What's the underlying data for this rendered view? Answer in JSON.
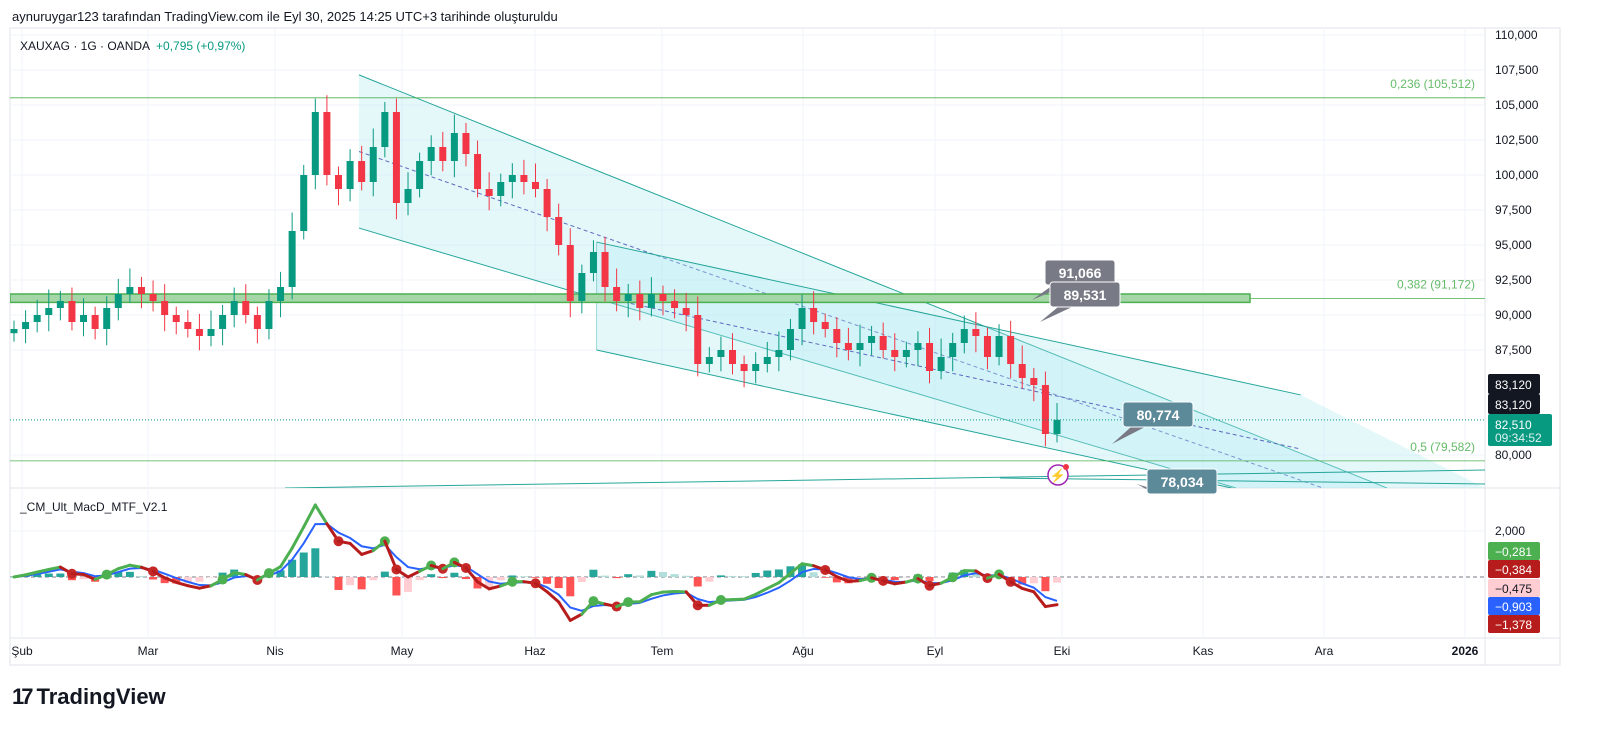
{
  "header": {
    "credit": "aynuruygar123 tarafından TradingView.com ile Eyl 30, 2025 14:25 UTC+3 tarihinde oluşturuldu",
    "symbol": "XAUXAG · 1G · OANDA",
    "change": "+0,795 (+0,97%)"
  },
  "indicator": {
    "name": "_CM_Ult_MacD_MTF_V2.1"
  },
  "logo": {
    "text": "TradingView"
  },
  "colors": {
    "up": "#089981",
    "down": "#f23645",
    "channel": "#26a69a",
    "fill": "#b2ebf2",
    "fib": "#4caf50",
    "macd_up": "#4caf50",
    "macd_down": "#b71c1c",
    "signal": "#2962ff"
  },
  "chart_data": {
    "type": "candlestick",
    "symbol": "XAUXAG",
    "timeframe": "1G",
    "date_start": "2025-02-03",
    "date_end": "2025-09-30",
    "closes": [
      89,
      89.5,
      90,
      90.5,
      91,
      89.5,
      90,
      89,
      90.5,
      91.5,
      92,
      91.5,
      91,
      90,
      89.5,
      89,
      88.5,
      89,
      90,
      91,
      90,
      89,
      91,
      92,
      96,
      100,
      104.5,
      100,
      99,
      101,
      99.5,
      102,
      104.5,
      98,
      99,
      101,
      102,
      101,
      103,
      101.5,
      99,
      98.5,
      99.5,
      100,
      99.5,
      99,
      97,
      95,
      91,
      93,
      94.5,
      92,
      91,
      91.5,
      90.5,
      91.5,
      91,
      90.5,
      90,
      86.5,
      87,
      87.5,
      86.5,
      86,
      86.5,
      87,
      87.5,
      89,
      90.5,
      89.5,
      89,
      88,
      87.5,
      88,
      88.5,
      87.5,
      87,
      87.5,
      88,
      86,
      87,
      88,
      89,
      88.5,
      87,
      88.5,
      86.5,
      85.5,
      85,
      81.5,
      82.51
    ],
    "close_units": "thousands",
    "price_axis": {
      "ticks": [
        "110,000",
        "107,500",
        "105,000",
        "102,500",
        "100,000",
        "97,500",
        "95,000",
        "92,500",
        "90,000",
        "87,500",
        "80,000"
      ],
      "range": [
        77600,
        110500
      ]
    },
    "time_axis": {
      "ticks": [
        "Şub",
        "Mar",
        "Nis",
        "May",
        "Haz",
        "Tem",
        "Ağu",
        "Eyl",
        "Eki",
        "Kas",
        "Ara",
        "2026"
      ]
    },
    "fib_levels": [
      {
        "label": "0,236 (105,512)",
        "price": 105512
      },
      {
        "label": "0,382 (91,172)",
        "price": 91172
      },
      {
        "label": "0,5 (79,582)",
        "price": 79582
      }
    ],
    "support_zone": {
      "from": 90900,
      "to": 91500
    },
    "channels": [
      {
        "top": [
          [
            "2025-04-20",
            107150
          ],
          [
            "2025-12-14",
            77640
          ]
        ],
        "bottom": [
          [
            "2025-04-20",
            96210
          ],
          [
            "2025-11-09",
            77640
          ]
        ]
      },
      {
        "top": [
          [
            "2025-06-14",
            95210
          ],
          [
            "2025-11-24",
            84290
          ]
        ],
        "bottom": [
          [
            "2025-06-14",
            87500
          ],
          [
            "2025-11-08",
            77640
          ]
        ]
      }
    ],
    "callouts": [
      "91,066",
      "89,531",
      "80,774",
      "78,034"
    ],
    "price_labels": [
      {
        "text": "83,120",
        "bg": "#131722"
      },
      {
        "text": "83,120",
        "bg": "#131722"
      },
      {
        "text": "82,510",
        "sub": "09:34:52",
        "bg": "#089981"
      }
    ],
    "macd_axis": {
      "ticks": [
        "2,000"
      ]
    },
    "macd_labels": [
      {
        "text": "−0,281",
        "bg": "#4caf50",
        "fg": "#fff"
      },
      {
        "text": "−0,384",
        "bg": "#b71c1c",
        "fg": "#fff"
      },
      {
        "text": "−0,475",
        "bg": "#ffcdd2",
        "fg": "#131722"
      },
      {
        "text": "−0,903",
        "bg": "#2962ff",
        "fg": "#fff"
      },
      {
        "text": "−1,378",
        "bg": "#b71c1c",
        "fg": "#fff"
      }
    ]
  }
}
